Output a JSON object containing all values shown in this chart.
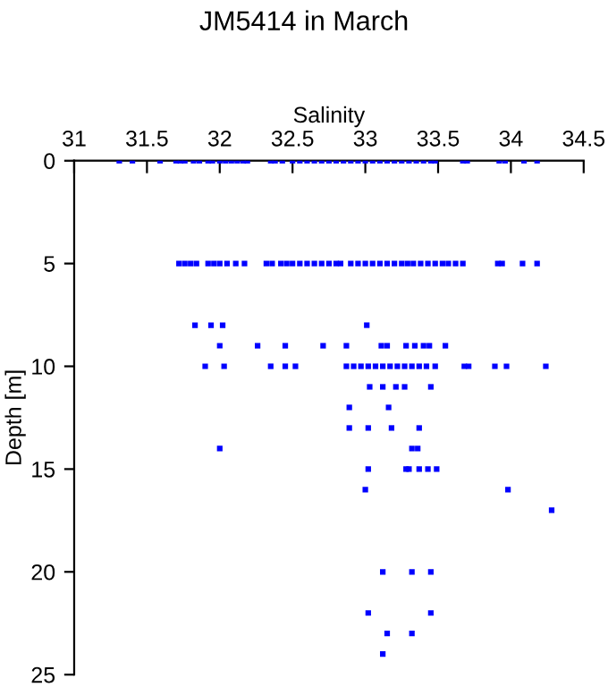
{
  "chart_data": {
    "type": "scatter",
    "title": "JM5414 in March",
    "xlabel": "Salinity",
    "ylabel": "Depth [m]",
    "xlim": [
      31,
      34.5
    ],
    "xticks": [
      31,
      31.5,
      32,
      32.5,
      33,
      33.5,
      34,
      34.5
    ],
    "ylim": [
      25,
      0
    ],
    "yticks": [
      0,
      5,
      10,
      15,
      20,
      25
    ],
    "marker": "square",
    "grid": false,
    "legend": false,
    "series": [
      {
        "color": "#0000ff",
        "x": [
          31.31,
          31.4,
          31.59,
          31.7,
          31.73,
          31.76,
          31.82,
          31.86,
          31.92,
          31.95,
          32.0,
          32.04,
          32.08,
          32.12,
          32.16,
          32.19,
          32.35,
          32.38,
          32.43,
          32.5,
          32.55,
          32.6,
          32.65,
          32.7,
          32.75,
          32.8,
          32.85,
          32.9,
          32.95,
          33.0,
          33.05,
          33.1,
          33.15,
          33.2,
          33.25,
          33.3,
          33.35,
          33.4,
          33.45,
          33.48,
          33.67,
          33.7,
          33.92,
          33.96,
          34.09,
          34.18,
          31.72,
          31.76,
          31.8,
          31.84,
          31.92,
          31.96,
          32.0,
          32.05,
          32.11,
          32.17,
          32.32,
          32.36,
          32.42,
          32.46,
          32.5,
          32.55,
          32.6,
          32.65,
          32.7,
          32.75,
          32.8,
          32.83,
          32.9,
          32.95,
          33.0,
          33.05,
          33.1,
          33.15,
          33.2,
          33.25,
          33.29,
          33.33,
          33.38,
          33.43,
          33.48,
          33.53,
          33.57,
          33.62,
          33.67,
          33.91,
          33.94,
          34.08,
          34.18,
          31.83,
          31.94,
          32.02,
          33.01,
          32.0,
          32.26,
          32.45,
          32.71,
          32.87,
          33.11,
          33.15,
          33.28,
          33.34,
          33.4,
          33.44,
          33.55,
          31.9,
          32.03,
          32.35,
          32.45,
          32.52,
          32.87,
          32.92,
          32.97,
          33.02,
          33.07,
          33.12,
          33.17,
          33.22,
          33.27,
          33.32,
          33.37,
          33.42,
          33.48,
          33.68,
          33.71,
          33.89,
          33.97,
          34.24,
          33.03,
          33.12,
          33.21,
          33.27,
          33.45,
          32.89,
          33.16,
          32.89,
          33.02,
          33.18,
          33.37,
          32.0,
          33.32,
          33.36,
          33.02,
          33.28,
          33.3,
          33.37,
          33.43,
          33.49,
          33.0,
          33.98,
          34.28,
          33.12,
          33.32,
          33.45,
          33.02,
          33.45,
          33.15,
          33.32,
          33.12
        ],
        "values": [
          0,
          0,
          0,
          0,
          0,
          0,
          0,
          0,
          0,
          0,
          0,
          0,
          0,
          0,
          0,
          0,
          0,
          0,
          0,
          0,
          0,
          0,
          0,
          0,
          0,
          0,
          0,
          0,
          0,
          0,
          0,
          0,
          0,
          0,
          0,
          0,
          0,
          0,
          0,
          0,
          0,
          0,
          0,
          0,
          0,
          0,
          5,
          5,
          5,
          5,
          5,
          5,
          5,
          5,
          5,
          5,
          5,
          5,
          5,
          5,
          5,
          5,
          5,
          5,
          5,
          5,
          5,
          5,
          5,
          5,
          5,
          5,
          5,
          5,
          5,
          5,
          5,
          5,
          5,
          5,
          5,
          5,
          5,
          5,
          5,
          5,
          5,
          5,
          5,
          8,
          8,
          8,
          8,
          9,
          9,
          9,
          9,
          9,
          9,
          9,
          9,
          9,
          9,
          9,
          9,
          10,
          10,
          10,
          10,
          10,
          10,
          10,
          10,
          10,
          10,
          10,
          10,
          10,
          10,
          10,
          10,
          10,
          10,
          10,
          10,
          10,
          10,
          10,
          11,
          11,
          11,
          11,
          11,
          12,
          12,
          13,
          13,
          13,
          13,
          14,
          14,
          14,
          15,
          15,
          15,
          15,
          15,
          15,
          16,
          16,
          17,
          20,
          20,
          20,
          22,
          22,
          23,
          23,
          24
        ]
      }
    ]
  }
}
